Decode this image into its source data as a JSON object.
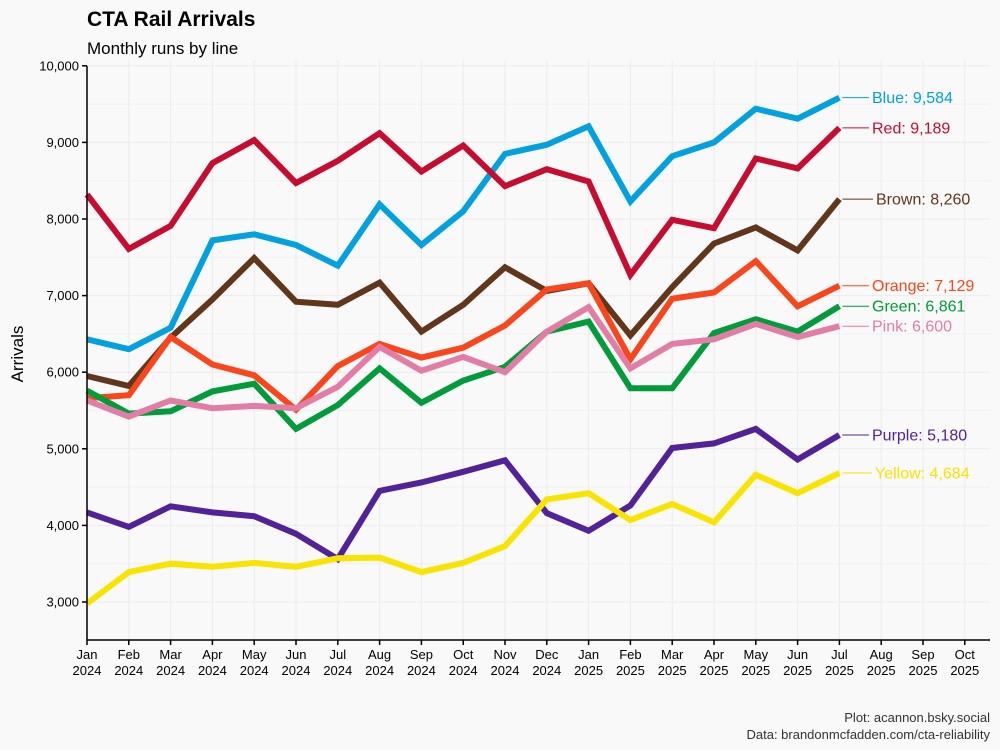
{
  "chart_data": {
    "type": "line",
    "title": "CTA Rail Arrivals",
    "subtitle": "Monthly runs by line",
    "xlabel": "",
    "ylabel": "Arrivals",
    "ylim": [
      2500,
      10000
    ],
    "yticks": [
      3000,
      4000,
      5000,
      6000,
      7000,
      8000,
      9000,
      10000
    ],
    "ytick_labels": [
      "3,000",
      "4,000",
      "5,000",
      "6,000",
      "7,000",
      "8,000",
      "9,000",
      "10,000"
    ],
    "x_months": [
      {
        "month": "Jan",
        "year": "2024"
      },
      {
        "month": "Feb",
        "year": "2024"
      },
      {
        "month": "Mar",
        "year": "2024"
      },
      {
        "month": "Apr",
        "year": "2024"
      },
      {
        "month": "May",
        "year": "2024"
      },
      {
        "month": "Jun",
        "year": "2024"
      },
      {
        "month": "Jul",
        "year": "2024"
      },
      {
        "month": "Aug",
        "year": "2024"
      },
      {
        "month": "Sep",
        "year": "2024"
      },
      {
        "month": "Oct",
        "year": "2024"
      },
      {
        "month": "Nov",
        "year": "2024"
      },
      {
        "month": "Dec",
        "year": "2024"
      },
      {
        "month": "Jan",
        "year": "2025"
      },
      {
        "month": "Feb",
        "year": "2025"
      },
      {
        "month": "Mar",
        "year": "2025"
      },
      {
        "month": "Apr",
        "year": "2025"
      },
      {
        "month": "May",
        "year": "2025"
      },
      {
        "month": "Jun",
        "year": "2025"
      },
      {
        "month": "Jul",
        "year": "2025"
      },
      {
        "month": "Aug",
        "year": "2025"
      },
      {
        "month": "Sep",
        "year": "2025"
      },
      {
        "month": "Oct",
        "year": "2025"
      }
    ],
    "series": [
      {
        "name": "Blue",
        "color": "#00a1de",
        "label": "Blue: 9,584",
        "values": [
          6430,
          6300,
          6580,
          7720,
          7800,
          7660,
          7390,
          8190,
          7660,
          8100,
          8850,
          8970,
          9210,
          8230,
          8820,
          9000,
          9440,
          9310,
          9584
        ]
      },
      {
        "name": "Red",
        "color": "#c60c30",
        "label": "Red: 9,189",
        "values": [
          8320,
          7610,
          7910,
          8730,
          9030,
          8470,
          8760,
          9120,
          8620,
          8960,
          8430,
          8650,
          8490,
          7270,
          7990,
          7880,
          8790,
          8660,
          9189
        ]
      },
      {
        "name": "Brown",
        "color": "#62361b",
        "label": "Brown: 8,260",
        "values": [
          5950,
          5820,
          6450,
          6950,
          7490,
          6920,
          6880,
          7170,
          6530,
          6880,
          7370,
          7060,
          7160,
          6480,
          7110,
          7680,
          7890,
          7590,
          8260
        ]
      },
      {
        "name": "Orange",
        "color": "#f9461c",
        "label": "Orange: 7,129",
        "values": [
          5660,
          5700,
          6460,
          6100,
          5960,
          5510,
          6080,
          6370,
          6190,
          6320,
          6610,
          7080,
          7160,
          6170,
          6960,
          7040,
          7450,
          6860,
          7129
        ]
      },
      {
        "name": "Green",
        "color": "#009b3a",
        "label": "Green: 6,861",
        "values": [
          5760,
          5460,
          5490,
          5750,
          5850,
          5260,
          5570,
          6050,
          5600,
          5890,
          6070,
          6530,
          6660,
          5790,
          5790,
          6510,
          6690,
          6530,
          6861
        ]
      },
      {
        "name": "Pink",
        "color": "#e27ea6",
        "label": "Pink: 6,600",
        "values": [
          5630,
          5420,
          5630,
          5530,
          5560,
          5530,
          5810,
          6330,
          6020,
          6200,
          6000,
          6530,
          6850,
          6050,
          6370,
          6430,
          6630,
          6460,
          6600
        ]
      },
      {
        "name": "Purple",
        "color": "#522398",
        "label": "Purple: 5,180",
        "values": [
          4170,
          3980,
          4250,
          4170,
          4120,
          3890,
          3560,
          4450,
          4560,
          4700,
          4850,
          4160,
          3930,
          4260,
          5010,
          5070,
          5260,
          4860,
          5180
        ]
      },
      {
        "name": "Yellow",
        "color": "#f9e300",
        "label": "Yellow: 4,684",
        "values": [
          2980,
          3390,
          3500,
          3460,
          3510,
          3460,
          3570,
          3580,
          3390,
          3510,
          3730,
          4340,
          4420,
          4070,
          4280,
          4040,
          4660,
          4420,
          4684
        ]
      }
    ],
    "label_positions": {
      "Blue": 9584,
      "Red": 9189,
      "Brown": 8260,
      "Orange": 7129,
      "Green": 6861,
      "Pink": 6600,
      "Purple": 5180,
      "Yellow": 4684
    },
    "label_y_values": {
      "Blue": 9584,
      "Red": 9189,
      "Brown": 8260,
      "Orange": 7129,
      "Green": 6861,
      "Pink": 6600,
      "Purple": 5180,
      "Yellow": 4684
    }
  },
  "caption": {
    "line1": "Plot: acannon.bsky.social",
    "line2": "Data: brandonmcfadden.com/cta-reliability"
  }
}
